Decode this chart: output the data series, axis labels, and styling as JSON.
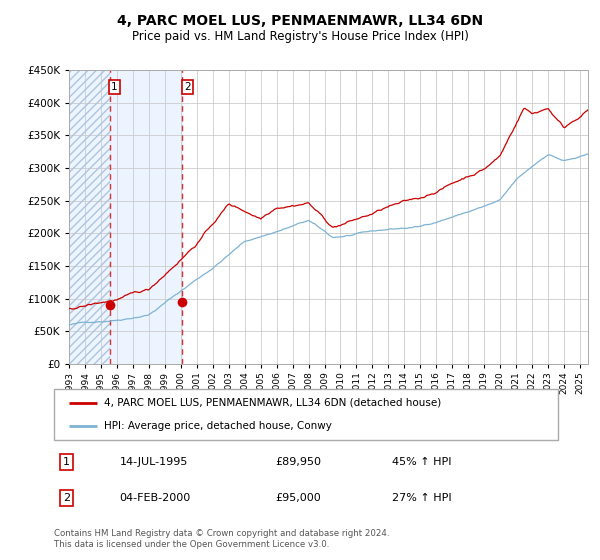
{
  "title": "4, PARC MOEL LUS, PENMAENMAWR, LL34 6DN",
  "subtitle": "Price paid vs. HM Land Registry's House Price Index (HPI)",
  "sale1_date": "14-JUL-1995",
  "sale1_price": 89950,
  "sale1_label": "45% ↑ HPI",
  "sale2_date": "04-FEB-2000",
  "sale2_price": 95000,
  "sale2_label": "27% ↑ HPI",
  "legend1": "4, PARC MOEL LUS, PENMAENMAWR, LL34 6DN (detached house)",
  "legend2": "HPI: Average price, detached house, Conwy",
  "footer": "Contains HM Land Registry data © Crown copyright and database right 2024.\nThis data is licensed under the Open Government Licence v3.0.",
  "hpi_color": "#7fb3d3",
  "price_color": "#cc0000",
  "sale_marker_color": "#cc0000",
  "ylim": [
    0,
    450000
  ],
  "yticks": [
    0,
    50000,
    100000,
    150000,
    200000,
    250000,
    300000,
    350000,
    400000,
    450000
  ],
  "background_color": "#ffffff",
  "grid_color": "#cccccc",
  "sale1_x": 1995.54,
  "sale2_x": 2000.09,
  "xmin": 1993.0,
  "xmax": 2025.5
}
